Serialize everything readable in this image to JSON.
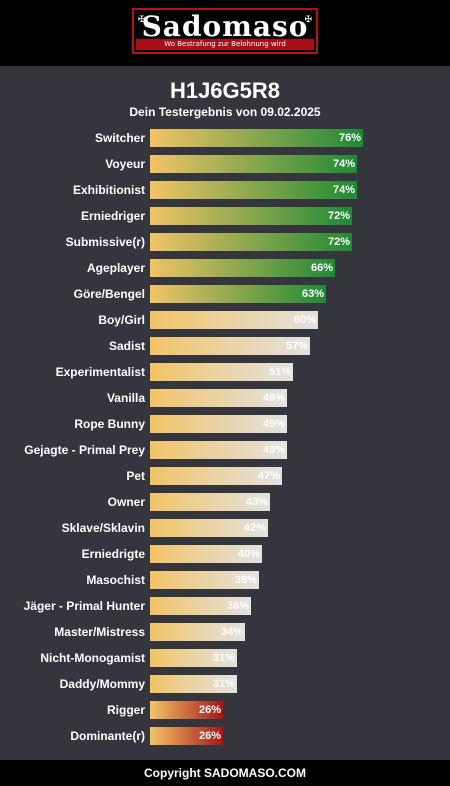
{
  "logo": {
    "title": "Sadomaso",
    "tagline": "Wo Bestrafung zur Belohnung wird"
  },
  "header": {
    "title": "H1J6G5R8",
    "subtitle": "Dein Testergebnis von 09.02.2025"
  },
  "footer": {
    "text": "Copyright SADOMASO.COM"
  },
  "colors": {
    "start": "#f2c466",
    "green": "#1e8a35",
    "neutral": "#e2e2e2",
    "red": "#a6161a",
    "background": "#35363d",
    "bar_bg": "#000000"
  },
  "chart_data": {
    "type": "bar",
    "orientation": "horizontal",
    "categories": [
      "Switcher",
      "Voyeur",
      "Exhibitionist",
      "Erniedriger",
      "Submissive(r)",
      "Ageplayer",
      "Göre/Bengel",
      "Boy/Girl",
      "Sadist",
      "Experimentalist",
      "Vanilla",
      "Rope Bunny",
      "Gejagte - Primal Prey",
      "Pet",
      "Owner",
      "Sklave/Sklavin",
      "Erniedrigte",
      "Masochist",
      "Jäger - Primal Hunter",
      "Master/Mistress",
      "Nicht-Monogamist",
      "Daddy/Mommy",
      "Rigger",
      "Dominante(r)"
    ],
    "values": [
      76,
      74,
      74,
      72,
      72,
      66,
      63,
      60,
      57,
      51,
      49,
      49,
      49,
      47,
      43,
      42,
      40,
      39,
      36,
      34,
      31,
      31,
      26,
      26
    ],
    "value_labels": [
      "76%",
      "74%",
      "74%",
      "72%",
      "72%",
      "66%",
      "63%",
      "60%",
      "57%",
      "51%",
      "49%",
      "49%",
      "49%",
      "47%",
      "43%",
      "42%",
      "40%",
      "39%",
      "36%",
      "34%",
      "31%",
      "31%",
      "26%",
      "26%"
    ],
    "bar_styles": [
      "green",
      "green",
      "green",
      "green",
      "green",
      "green",
      "green",
      "neutral",
      "neutral",
      "neutral",
      "neutral",
      "neutral",
      "neutral",
      "neutral",
      "neutral",
      "neutral",
      "neutral",
      "neutral",
      "neutral",
      "neutral",
      "neutral",
      "neutral",
      "red",
      "red"
    ],
    "xlim": [
      0,
      100
    ]
  }
}
